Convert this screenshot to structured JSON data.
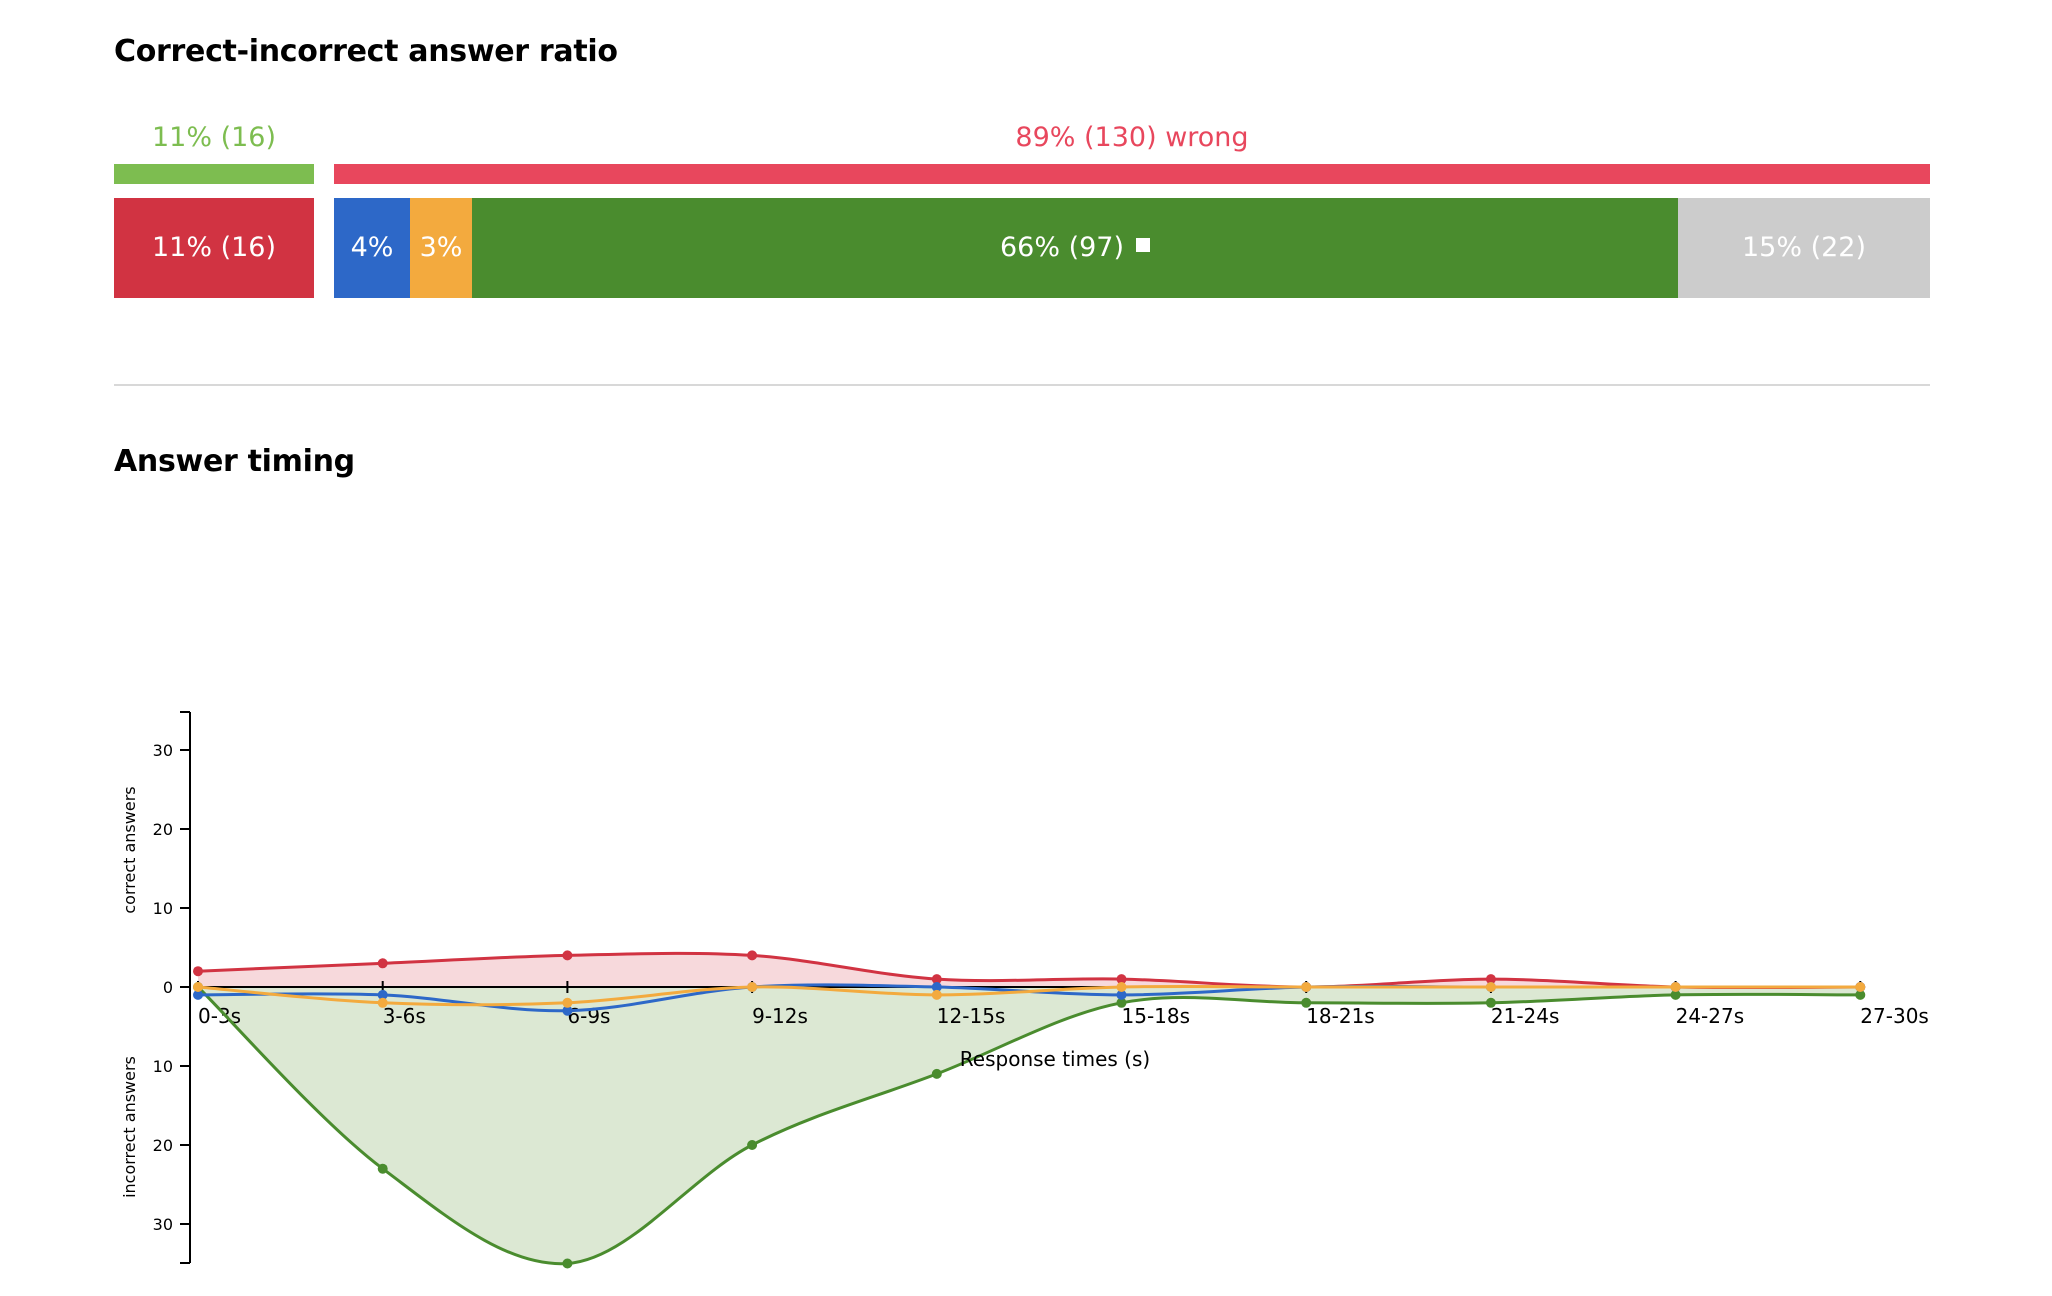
{
  "ratio": {
    "title": "Correct-incorrect answer ratio",
    "correct_label": "11% (16)",
    "wrong_label": "89% (130) wrong",
    "segments": [
      {
        "label": "11% (16)",
        "percent": 11,
        "color": "#d13342"
      },
      {
        "label": "4%",
        "percent": 4,
        "color": "#2d68c8"
      },
      {
        "label": "3%",
        "percent": 3,
        "color": "#f3aa3e"
      },
      {
        "label": "66% (97)",
        "percent": 66,
        "color": "#4a8c2e"
      },
      {
        "label": "15% (22)",
        "percent": 15,
        "color": "#cccccc"
      }
    ],
    "colors": {
      "correct": "#7dbd50",
      "wrong": "#e8475d"
    }
  },
  "timing": {
    "title": "Answer timing"
  },
  "chart_data": {
    "type": "area",
    "xlabel": "Response times (s)",
    "ylabel_top": "correct answers",
    "ylabel_bottom": "incorrect answers",
    "categories": [
      "0-3s",
      "3-6s",
      "6-9s",
      "9-12s",
      "12-15s",
      "15-18s",
      "18-21s",
      "21-24s",
      "24-27s",
      "27-30s"
    ],
    "y_ticks": [
      {
        "value": 30,
        "label": "30"
      },
      {
        "value": 20,
        "label": "20"
      },
      {
        "value": 10,
        "label": "10"
      },
      {
        "value": 0,
        "label": "0"
      },
      {
        "value": -10,
        "label": "10"
      },
      {
        "value": -20,
        "label": "20"
      },
      {
        "value": -30,
        "label": "30"
      }
    ],
    "ylim": [
      -35,
      35
    ],
    "series": [
      {
        "color": "#d13342",
        "fill": "#f7d9dc",
        "values": [
          2,
          3,
          4,
          4,
          1,
          1,
          0,
          1,
          0,
          0
        ]
      },
      {
        "color": "#4a8c2e",
        "fill": "#dce8d3",
        "values": [
          0,
          -23,
          -35,
          -20,
          -11,
          -2,
          -2,
          -2,
          -1,
          -1
        ]
      },
      {
        "color": "#2d68c8",
        "fill": "none",
        "values": [
          -1,
          -1,
          -3,
          0,
          0,
          -1,
          0,
          0,
          0,
          0
        ]
      },
      {
        "color": "#f3aa3e",
        "fill": "none",
        "values": [
          0,
          -2,
          -2,
          0,
          -1,
          0,
          0,
          0,
          0,
          0
        ]
      }
    ]
  }
}
